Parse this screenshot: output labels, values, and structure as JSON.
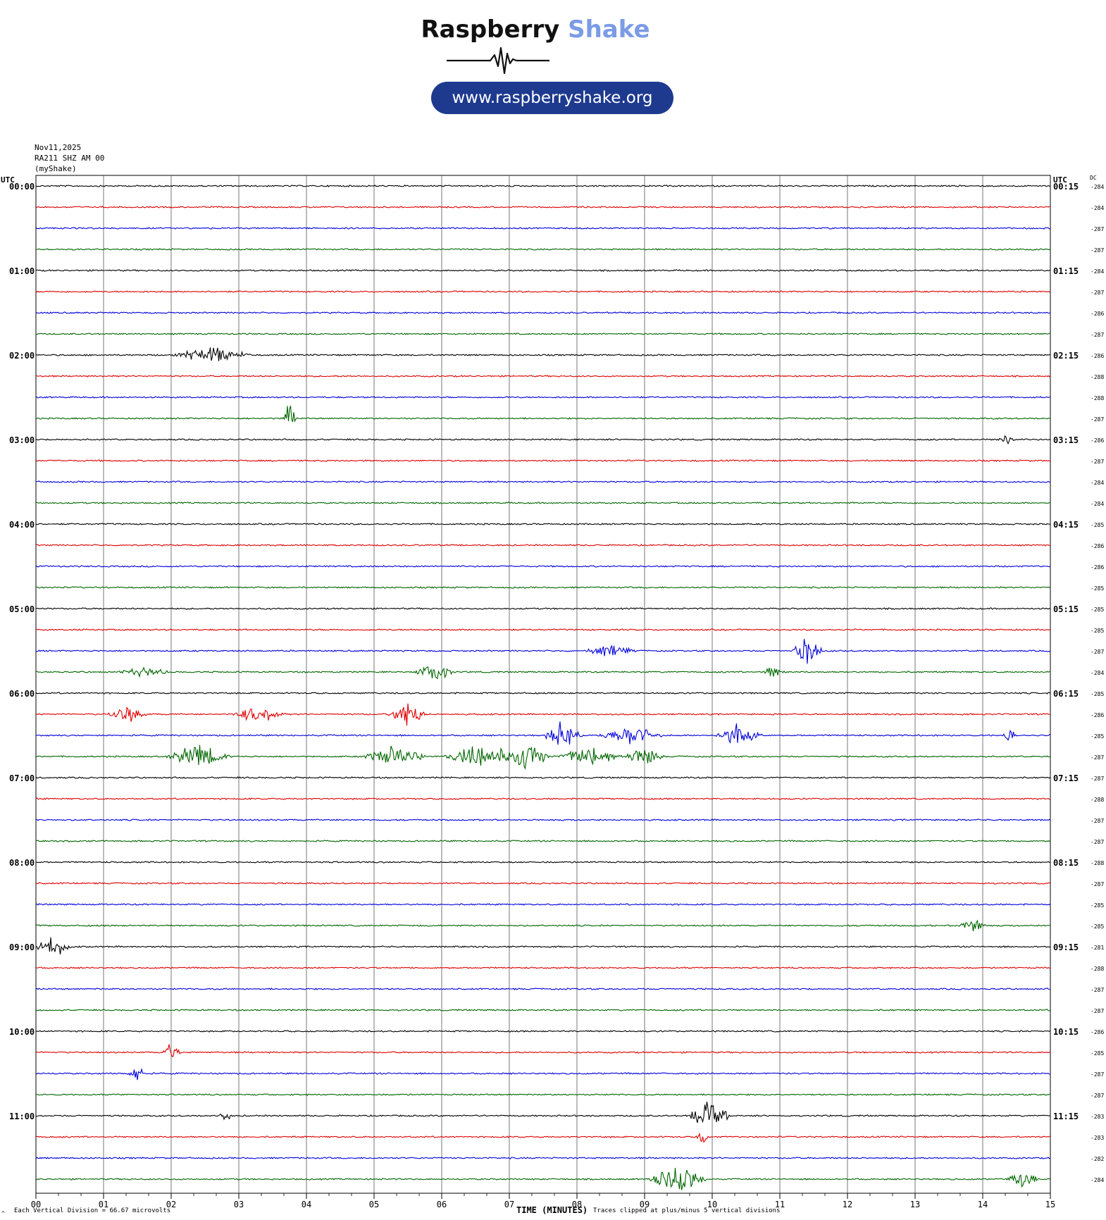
{
  "branding": {
    "name_part1": "Raspberry",
    "name_part2": "Shake",
    "url": "www.raspberryshake.org",
    "accent_color": "#7b9be6",
    "pill_color": "#1d3a8f"
  },
  "header": {
    "date": "Nov11,2025",
    "station": "RA211 SHZ AM 00",
    "network": "(myShake)"
  },
  "chart_data": {
    "type": "line",
    "title": "",
    "left_axis_label": "UTC",
    "right_axis_label": "UTC",
    "dc_label": "DC",
    "x_ticks": [
      "00",
      "01",
      "02",
      "03",
      "04",
      "05",
      "06",
      "07",
      "08",
      "09",
      "10",
      "11",
      "12",
      "13",
      "14",
      "15"
    ],
    "xlim": [
      0,
      15
    ],
    "xlabel": "TIME (MINUTES)",
    "scale_note": "Each Vertical Division = 66.67 microvolts",
    "clip_note": "Traces clipped at plus/minus 5 vertical divisions",
    "footer_mark": "^",
    "trace_colors": [
      "#000000",
      "#e00000",
      "#0000dd",
      "#006600"
    ],
    "hour_labels_left": [
      "00:00",
      "01:00",
      "02:00",
      "03:00",
      "04:00",
      "05:00",
      "06:00",
      "07:00",
      "08:00",
      "09:00",
      "10:00",
      "11:00"
    ],
    "hour_labels_right": [
      "00:15",
      "01:15",
      "02:15",
      "03:15",
      "04:15",
      "05:15",
      "06:15",
      "07:15",
      "08:15",
      "09:15",
      "10:15",
      "11:15"
    ],
    "dc_values": [
      -284,
      -284,
      -287,
      -287,
      -284,
      -287,
      -286,
      -287,
      -286,
      -288,
      -288,
      -287,
      -286,
      -287,
      -284,
      -284,
      -285,
      -286,
      -286,
      -285,
      -285,
      -285,
      -287,
      -284,
      -285,
      -286,
      -285,
      -287,
      -287,
      -288,
      -287,
      -287,
      -288,
      -287,
      -285,
      -285,
      -281,
      -288,
      -287,
      -287,
      -286,
      -285,
      -287,
      -287,
      -283,
      -283,
      -282,
      -284
    ],
    "events": [
      {
        "trace": 8,
        "minute": 2.6,
        "amplitude": 0.35,
        "duration": 0.6
      },
      {
        "trace": 11,
        "minute": 3.75,
        "amplitude": 0.7,
        "duration": 0.1
      },
      {
        "trace": 12,
        "minute": 14.35,
        "amplitude": 0.3,
        "duration": 0.15
      },
      {
        "trace": 22,
        "minute": 11.4,
        "amplitude": 0.6,
        "duration": 0.25
      },
      {
        "trace": 22,
        "minute": 8.5,
        "amplitude": 0.25,
        "duration": 0.4
      },
      {
        "trace": 23,
        "minute": 5.9,
        "amplitude": 0.4,
        "duration": 0.3
      },
      {
        "trace": 23,
        "minute": 1.6,
        "amplitude": 0.2,
        "duration": 0.4
      },
      {
        "trace": 23,
        "minute": 10.9,
        "amplitude": 0.25,
        "duration": 0.2
      },
      {
        "trace": 25,
        "minute": 1.35,
        "amplitude": 0.35,
        "duration": 0.3
      },
      {
        "trace": 25,
        "minute": 3.3,
        "amplitude": 0.35,
        "duration": 0.4
      },
      {
        "trace": 25,
        "minute": 5.5,
        "amplitude": 0.55,
        "duration": 0.3
      },
      {
        "trace": 26,
        "minute": 7.8,
        "amplitude": 0.65,
        "duration": 0.3
      },
      {
        "trace": 26,
        "minute": 8.8,
        "amplitude": 0.4,
        "duration": 0.5
      },
      {
        "trace": 26,
        "minute": 10.4,
        "amplitude": 0.55,
        "duration": 0.35
      },
      {
        "trace": 26,
        "minute": 14.4,
        "amplitude": 0.3,
        "duration": 0.1
      },
      {
        "trace": 27,
        "minute": 2.4,
        "amplitude": 0.5,
        "duration": 0.5
      },
      {
        "trace": 27,
        "minute": 5.3,
        "amplitude": 0.45,
        "duration": 0.5
      },
      {
        "trace": 27,
        "minute": 6.6,
        "amplitude": 0.55,
        "duration": 0.6
      },
      {
        "trace": 27,
        "minute": 7.3,
        "amplitude": 0.75,
        "duration": 0.3
      },
      {
        "trace": 27,
        "minute": 8.2,
        "amplitude": 0.45,
        "duration": 0.5
      },
      {
        "trace": 27,
        "minute": 9.0,
        "amplitude": 0.4,
        "duration": 0.3
      },
      {
        "trace": 36,
        "minute": 0.25,
        "amplitude": 0.45,
        "duration": 0.3
      },
      {
        "trace": 35,
        "minute": 13.85,
        "amplitude": 0.35,
        "duration": 0.2
      },
      {
        "trace": 41,
        "minute": 2.0,
        "amplitude": 0.4,
        "duration": 0.15
      },
      {
        "trace": 42,
        "minute": 1.5,
        "amplitude": 0.35,
        "duration": 0.15
      },
      {
        "trace": 44,
        "minute": 2.8,
        "amplitude": 0.35,
        "duration": 0.1
      },
      {
        "trace": 44,
        "minute": 9.95,
        "amplitude": 0.6,
        "duration": 0.35
      },
      {
        "trace": 45,
        "minute": 9.85,
        "amplitude": 0.3,
        "duration": 0.1
      },
      {
        "trace": 47,
        "minute": 9.5,
        "amplitude": 0.6,
        "duration": 0.45
      },
      {
        "trace": 47,
        "minute": 14.6,
        "amplitude": 0.45,
        "duration": 0.25
      }
    ]
  }
}
